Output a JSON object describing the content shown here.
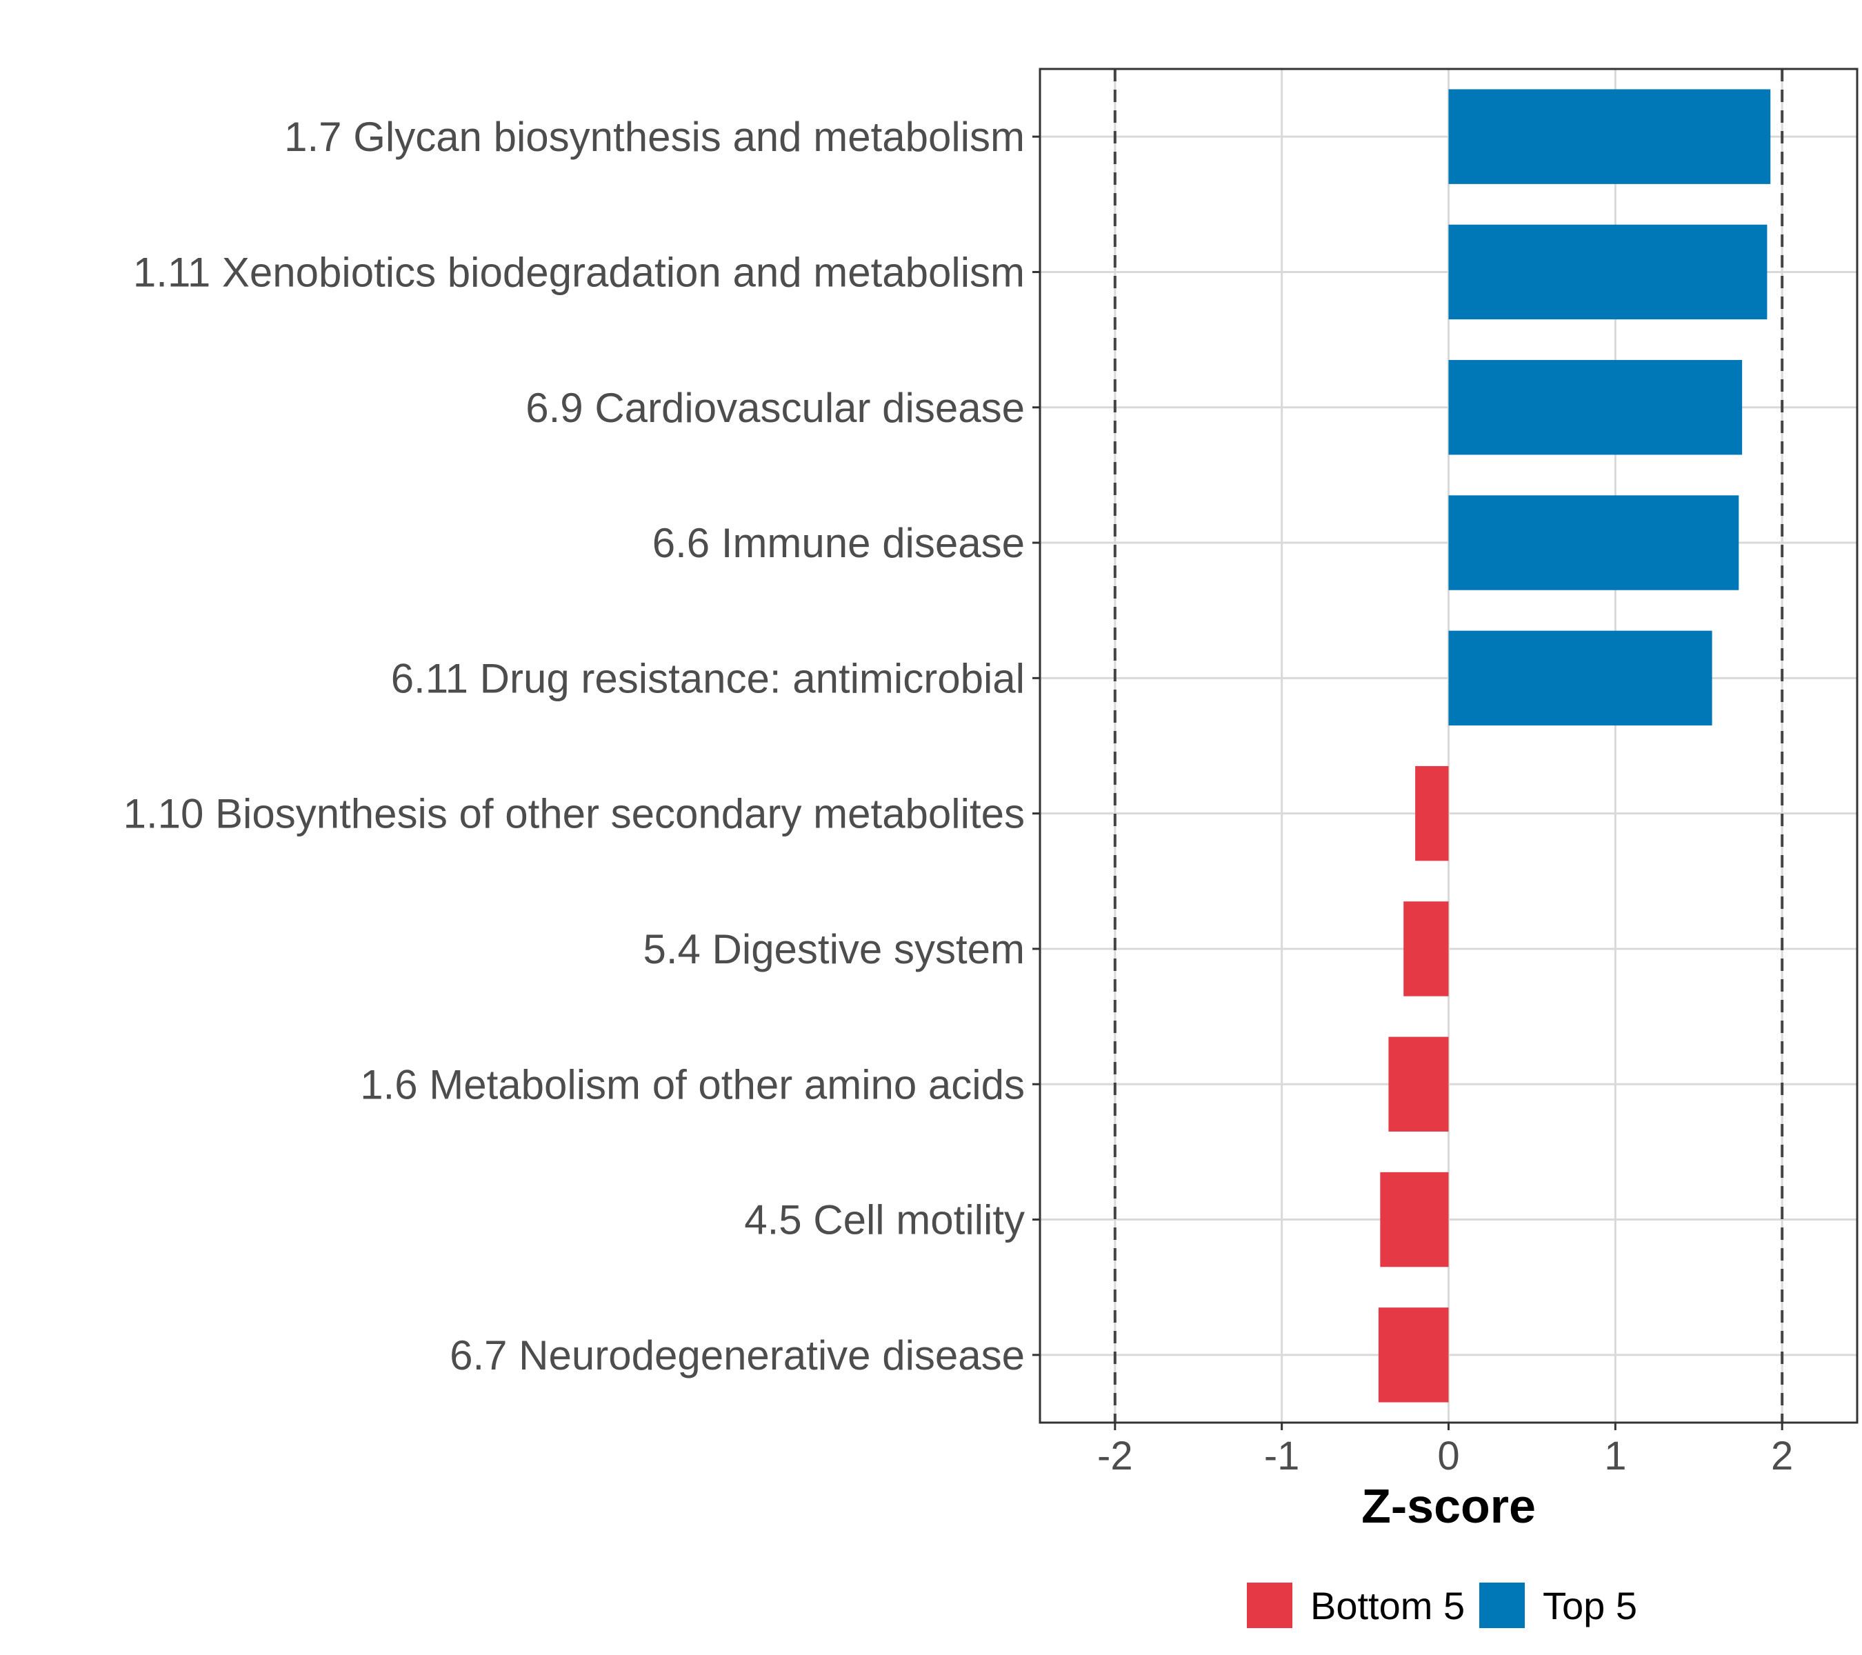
{
  "chart_data": {
    "type": "bar",
    "orientation": "horizontal",
    "title": "",
    "xlabel": "Z-score",
    "ylabel": "",
    "xlim": [
      -2.45,
      2.45
    ],
    "xticks": [
      -2,
      -1,
      0,
      1,
      2
    ],
    "xtick_labels": [
      "-2",
      "-1",
      "0",
      "1",
      "2"
    ],
    "reference_lines": [
      -2,
      2
    ],
    "grid": true,
    "categories": [
      "1.7 Glycan biosynthesis and metabolism",
      "1.11 Xenobiotics biodegradation and metabolism",
      "6.9 Cardiovascular disease",
      "6.6 Immune disease",
      "6.11 Drug resistance: antimicrobial",
      "1.10 Biosynthesis of other secondary metabolites",
      "5.4 Digestive system",
      "1.6 Metabolism of other amino acids",
      "4.5 Cell motility",
      "6.7 Neurodegenerative disease"
    ],
    "values": [
      1.93,
      1.91,
      1.76,
      1.74,
      1.58,
      -0.2,
      -0.27,
      -0.36,
      -0.41,
      -0.42
    ],
    "groups": [
      "Top 5",
      "Top 5",
      "Top 5",
      "Top 5",
      "Top 5",
      "Bottom 5",
      "Bottom 5",
      "Bottom 5",
      "Bottom 5",
      "Bottom 5"
    ],
    "legend": {
      "placement": "bottom",
      "entries": [
        {
          "label": "Bottom 5",
          "color": "#e63946"
        },
        {
          "label": "Top 5",
          "color": "#0077b6"
        }
      ]
    }
  }
}
